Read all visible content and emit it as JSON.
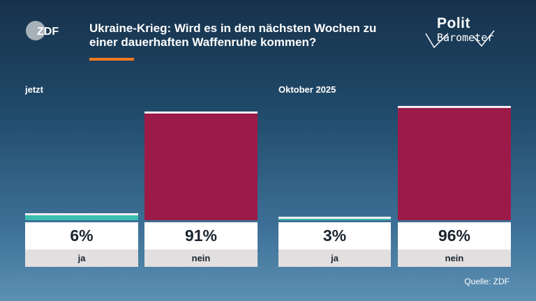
{
  "branding": {
    "broadcaster_logo": "ZDF",
    "polit": "Polit",
    "barometer": "Barometer"
  },
  "source": "Quelle: ZDF",
  "colors": {
    "ja": "#3bbfb0",
    "nein": "#9b1a48",
    "accent": "#f07a1f"
  },
  "chart_data": {
    "type": "bar",
    "title": "Ukraine-Krieg: Wird es in den nächsten Wochen zu einer dauerhaften Waffenruhe kommen?",
    "categories": [
      "ja",
      "nein"
    ],
    "ylim": [
      0,
      100
    ],
    "unit": "%",
    "panels": [
      {
        "label": "jetzt",
        "values": [
          6,
          91
        ],
        "value_labels": [
          "6%",
          "91%"
        ]
      },
      {
        "label": "Oktober 2025",
        "values": [
          3,
          96
        ],
        "value_labels": [
          "3%",
          "96%"
        ]
      }
    ]
  }
}
